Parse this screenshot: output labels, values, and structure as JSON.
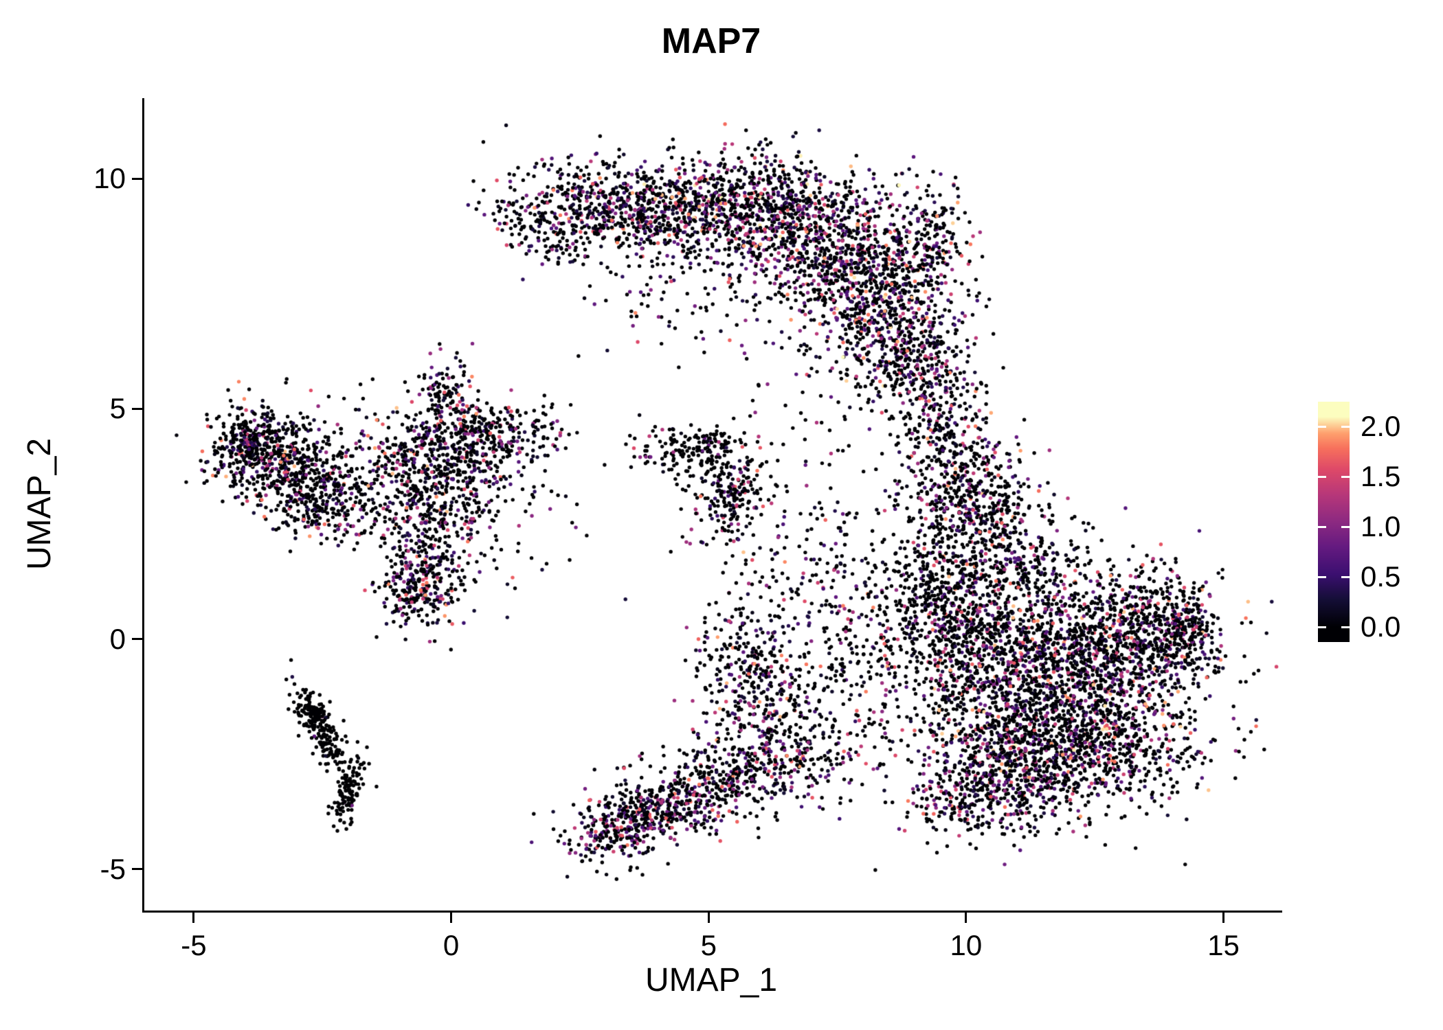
{
  "chart_data": {
    "type": "scatter",
    "title": "MAP7",
    "xlabel": "UMAP_1",
    "ylabel": "UMAP_2",
    "xlim": [
      -6.0,
      16.1
    ],
    "ylim": [
      -5.9,
      11.75
    ],
    "x_ticks": [
      -5,
      0,
      5,
      10,
      15
    ],
    "y_ticks": [
      10,
      5,
      0,
      -5
    ],
    "grid": false,
    "legend_position": "right",
    "point_radius": 2.7,
    "seed": 1337,
    "colorbar": {
      "title": "",
      "ticks": [
        2.0,
        1.5,
        1.0,
        0.5,
        0.0
      ],
      "vmin": 0.0,
      "vmax": 2.1,
      "bar_domain": [
        -0.15,
        2.25
      ],
      "colormap": "magma",
      "stops": [
        {
          "t": 0.0,
          "color": "#000004"
        },
        {
          "t": 0.13,
          "color": "#140e36"
        },
        {
          "t": 0.25,
          "color": "#3b0f70"
        },
        {
          "t": 0.38,
          "color": "#641a80"
        },
        {
          "t": 0.5,
          "color": "#8c2981"
        },
        {
          "t": 0.63,
          "color": "#b73779"
        },
        {
          "t": 0.75,
          "color": "#de4968"
        },
        {
          "t": 0.85,
          "color": "#f7705c"
        },
        {
          "t": 0.92,
          "color": "#fe9f6d"
        },
        {
          "t": 1.0,
          "color": "#fcfdbf"
        }
      ]
    },
    "clusters": [
      {
        "x": 1.7,
        "y": 8.85,
        "sx": 0.55,
        "sy": 0.3,
        "rot": -35,
        "n": 130,
        "p0": 0.5,
        "emax": 1.9
      },
      {
        "x": 3.2,
        "y": 9.35,
        "sx": 1.0,
        "sy": 0.45,
        "rot": -12,
        "n": 520,
        "p0": 0.45,
        "emax": 2.0
      },
      {
        "x": 5.4,
        "y": 9.45,
        "sx": 1.25,
        "sy": 0.55,
        "rot": 0,
        "n": 750,
        "p0": 0.42,
        "emax": 2.1
      },
      {
        "x": 7.2,
        "y": 8.65,
        "sx": 1.15,
        "sy": 0.75,
        "rot": -28,
        "n": 780,
        "p0": 0.42,
        "emax": 2.1
      },
      {
        "x": 8.3,
        "y": 7.15,
        "sx": 0.75,
        "sy": 0.95,
        "rot": -12,
        "n": 600,
        "p0": 0.45,
        "emax": 2.1
      },
      {
        "x": 8.9,
        "y": 6.0,
        "sx": 0.5,
        "sy": 0.6,
        "rot": 0,
        "n": 260,
        "p0": 0.48,
        "emax": 2.0
      },
      {
        "x": 4.6,
        "y": 7.9,
        "sx": 1.3,
        "sy": 0.85,
        "rot": -15,
        "n": 170,
        "p0": 0.5,
        "emax": 1.9
      },
      {
        "x": 9.35,
        "y": 8.7,
        "sx": 0.35,
        "sy": 0.6,
        "rot": 0,
        "n": 150,
        "p0": 0.45,
        "emax": 2.0
      },
      {
        "x": 9.5,
        "y": 4.9,
        "sx": 0.45,
        "sy": 0.65,
        "rot": 0,
        "n": 160,
        "p0": 0.55,
        "emax": 1.9
      },
      {
        "x": 9.8,
        "y": 3.3,
        "sx": 0.6,
        "sy": 0.75,
        "rot": 0,
        "n": 420,
        "p0": 0.5,
        "emax": 2.0
      },
      {
        "x": 10.6,
        "y": 2.7,
        "sx": 0.5,
        "sy": 0.5,
        "rot": 0,
        "n": 130,
        "p0": 0.6,
        "emax": 1.9
      },
      {
        "x": 9.6,
        "y": 0.9,
        "sx": 0.75,
        "sy": 0.8,
        "rot": 0,
        "n": 450,
        "p0": 0.58,
        "emax": 2.0
      },
      {
        "x": 11.2,
        "y": -0.3,
        "sx": 1.5,
        "sy": 0.95,
        "rot": 0,
        "n": 1650,
        "p0": 0.58,
        "emax": 2.0
      },
      {
        "x": 11.9,
        "y": -2.2,
        "sx": 1.35,
        "sy": 0.8,
        "rot": 0,
        "n": 1350,
        "p0": 0.55,
        "emax": 2.1
      },
      {
        "x": 13.3,
        "y": 0.1,
        "sx": 0.8,
        "sy": 0.6,
        "rot": 0,
        "n": 480,
        "p0": 0.6,
        "emax": 2.0
      },
      {
        "x": 10.4,
        "y": -3.3,
        "sx": 0.9,
        "sy": 0.5,
        "rot": 10,
        "n": 380,
        "p0": 0.52,
        "emax": 2.0
      },
      {
        "x": 14.2,
        "y": 0.35,
        "sx": 0.28,
        "sy": 0.5,
        "rot": 0,
        "n": 140,
        "p0": 0.55,
        "emax": 2.0
      },
      {
        "x": 10.7,
        "y": 1.7,
        "sx": 1.2,
        "sy": 0.45,
        "rot": 0,
        "n": 200,
        "p0": 0.62,
        "emax": 1.9
      },
      {
        "x": 7.3,
        "y": 0.4,
        "sx": 0.9,
        "sy": 1.4,
        "rot": 0,
        "n": 280,
        "p0": 0.6,
        "emax": 1.9
      },
      {
        "x": 6.3,
        "y": -2.1,
        "sx": 0.7,
        "sy": 0.8,
        "rot": 0,
        "n": 230,
        "p0": 0.55,
        "emax": 2.0
      },
      {
        "x": 5.7,
        "y": -0.6,
        "sx": 0.5,
        "sy": 0.85,
        "rot": 0,
        "n": 260,
        "p0": 0.5,
        "emax": 2.0
      },
      {
        "x": 5.6,
        "y": -2.9,
        "sx": 1.15,
        "sy": 0.4,
        "rot": 12,
        "n": 360,
        "p0": 0.52,
        "emax": 1.9
      },
      {
        "x": 3.35,
        "y": -4.05,
        "sx": 0.55,
        "sy": 0.35,
        "rot": 25,
        "n": 330,
        "p0": 0.5,
        "emax": 1.9
      },
      {
        "x": 4.4,
        "y": -3.55,
        "sx": 0.6,
        "sy": 0.38,
        "rot": 15,
        "n": 210,
        "p0": 0.52,
        "emax": 1.9
      },
      {
        "x": 6.6,
        "y": 2.3,
        "sx": 1.0,
        "sy": 0.8,
        "rot": 0,
        "n": 45,
        "p0": 0.6,
        "emax": 1.8
      },
      {
        "x": 7.0,
        "y": 5.0,
        "sx": 0.9,
        "sy": 0.5,
        "rot": 0,
        "n": 22,
        "p0": 0.6,
        "emax": 1.8
      },
      {
        "x": 4.45,
        "y": 4.0,
        "sx": 0.45,
        "sy": 0.28,
        "rot": -15,
        "n": 130,
        "p0": 0.8,
        "emax": 1.6
      },
      {
        "x": 5.4,
        "y": 3.15,
        "sx": 0.33,
        "sy": 0.55,
        "rot": -20,
        "n": 210,
        "p0": 0.45,
        "emax": 2.0
      },
      {
        "x": 5.05,
        "y": 4.3,
        "sx": 0.28,
        "sy": 0.18,
        "rot": 0,
        "n": 55,
        "p0": 0.7,
        "emax": 1.6
      },
      {
        "x": -3.4,
        "y": 3.95,
        "sx": 0.75,
        "sy": 0.5,
        "rot": -8,
        "n": 560,
        "p0": 0.62,
        "emax": 2.0
      },
      {
        "x": -2.45,
        "y": 3.05,
        "sx": 0.6,
        "sy": 0.5,
        "rot": 0,
        "n": 310,
        "p0": 0.6,
        "emax": 2.0
      },
      {
        "x": -3.95,
        "y": 4.3,
        "sx": 0.28,
        "sy": 0.38,
        "rot": 0,
        "n": 150,
        "p0": 0.6,
        "emax": 1.9
      },
      {
        "x": -0.3,
        "y": 3.85,
        "sx": 0.8,
        "sy": 0.7,
        "rot": 0,
        "n": 520,
        "p0": 0.55,
        "emax": 2.0
      },
      {
        "x": -0.5,
        "y": 2.3,
        "sx": 0.45,
        "sy": 0.75,
        "rot": 0,
        "n": 240,
        "p0": 0.55,
        "emax": 2.0
      },
      {
        "x": -0.65,
        "y": 1.05,
        "sx": 0.35,
        "sy": 0.45,
        "rot": 0,
        "n": 230,
        "p0": 0.5,
        "emax": 2.0
      },
      {
        "x": 0.8,
        "y": 4.45,
        "sx": 0.7,
        "sy": 0.38,
        "rot": 8,
        "n": 210,
        "p0": 0.55,
        "emax": 1.9
      },
      {
        "x": -0.15,
        "y": 5.4,
        "sx": 0.28,
        "sy": 0.38,
        "rot": 0,
        "n": 90,
        "p0": 0.55,
        "emax": 1.9
      },
      {
        "x": 0.4,
        "y": 2.9,
        "sx": 0.95,
        "sy": 0.95,
        "rot": 0,
        "n": 130,
        "p0": 0.6,
        "emax": 1.9
      },
      {
        "x": -2.55,
        "y": -2.0,
        "sx": 0.55,
        "sy": 0.14,
        "rot": -62,
        "n": 190,
        "p0": 0.96,
        "emax": 1.2
      },
      {
        "x": -2.05,
        "y": -3.35,
        "sx": 0.12,
        "sy": 0.42,
        "rot": -15,
        "n": 110,
        "p0": 0.96,
        "emax": 1.2
      },
      {
        "x": -2.75,
        "y": -1.55,
        "sx": 0.22,
        "sy": 0.1,
        "rot": -30,
        "n": 45,
        "p0": 0.95,
        "emax": 1.2
      }
    ]
  }
}
